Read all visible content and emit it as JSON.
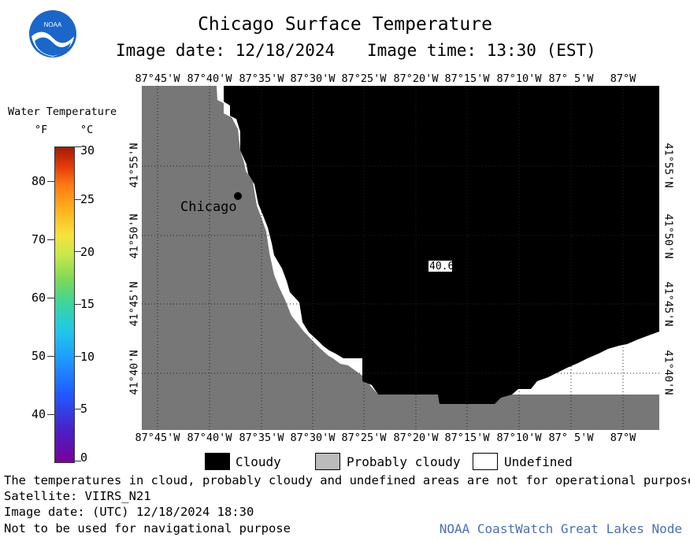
{
  "header": {
    "title": "Chicago Surface Temperature",
    "image_date": "Image date: 12/18/2024",
    "image_time": "Image time: 13:30 (EST)"
  },
  "logo": {
    "text": "NOAA"
  },
  "legend": {
    "title": "Water Temperature",
    "unit_f": "°F",
    "unit_c": "°C",
    "f_ticks": [
      "80",
      "70",
      "60",
      "50",
      "40"
    ],
    "c_ticks": [
      "30",
      "25",
      "20",
      "15",
      "10",
      "5",
      "0"
    ]
  },
  "map": {
    "lon_labels": [
      "87°45'W",
      "87°40'W",
      "87°35'W",
      "87°30'W",
      "87°25'W",
      "87°20'W",
      "87°15'W",
      "87°10'W",
      "87° 5'W",
      "87°W"
    ],
    "lat_labels": [
      "41°55'N",
      "41°50'N",
      "41°45'N",
      "41°40'N"
    ],
    "city_label": "Chicago",
    "value_label": "40.6",
    "colors": {
      "land": "#777777",
      "cloud": "#000000",
      "undefined": "#ffffff",
      "probably_cloudy": "#bbbbbb"
    }
  },
  "key": {
    "cloudy": "Cloudy",
    "probably_cloudy": "Probably cloudy",
    "undefined": "Undefined"
  },
  "footer": {
    "disclaimer": "The temperatures in cloud, probably cloudy and undefined areas are not for operational purpose.",
    "satellite": "Satellite: VIIRS_N21",
    "utc_date": "Image date: (UTC) 12/18/2024  18:30",
    "navigation": "Not to be used for navigational purpose",
    "node": "NOAA CoastWatch Great Lakes Node"
  }
}
